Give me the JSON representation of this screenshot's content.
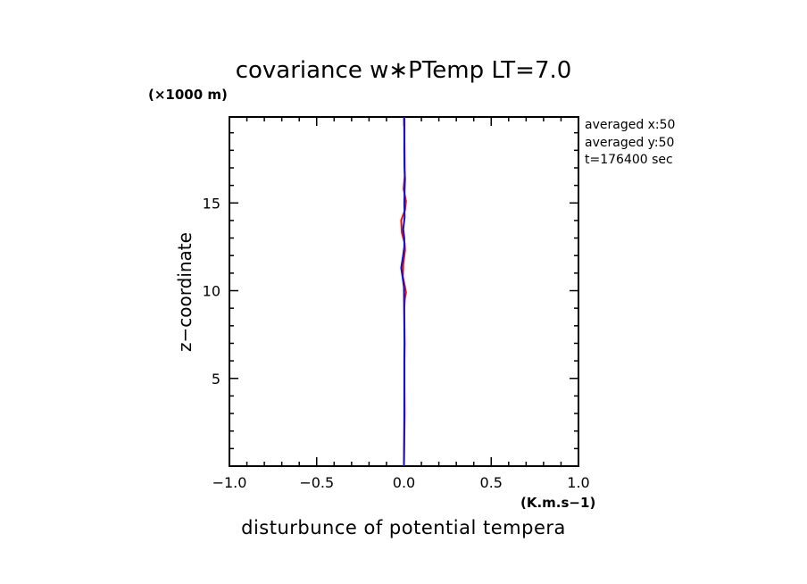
{
  "chart_data": {
    "type": "line",
    "title": "covariance w∗PTemp LT=7.0",
    "xlabel": "disturbunce of potential tempera",
    "ylabel": "z−coordinate",
    "x_unit": "(K.m.s−1)",
    "y_unit": "(×1000 m)",
    "xlim": [
      -1.0,
      1.0
    ],
    "ylim": [
      0,
      19.9
    ],
    "x_ticks": [
      -1.0,
      -0.5,
      0.0,
      0.5,
      1.0
    ],
    "x_tick_labels": [
      "−1.0",
      "−0.5",
      "0.0",
      "0.5",
      "1.0"
    ],
    "y_ticks": [
      5,
      10,
      15
    ],
    "y_tick_labels": [
      "5",
      "10",
      "15"
    ],
    "annotations": [
      "averaged   x:50",
      "averaged   y:50",
      "t=176400 sec"
    ],
    "grid": false,
    "legend": "none",
    "series": [
      {
        "color": "#e01010",
        "x": [
          0.0,
          0.002,
          0.004,
          0.003,
          0.003,
          0.004,
          0.003,
          0.002,
          0.004,
          0.006,
          0.012,
          0.004,
          -0.006,
          -0.004,
          0.006,
          0.004,
          -0.012,
          -0.016,
          0.006,
          0.012,
          -0.002,
          0.004,
          0.004,
          0.003,
          0.003
        ],
        "y": [
          0,
          1.5,
          3,
          4.5,
          6,
          7,
          8,
          9,
          9.4,
          9.6,
          9.9,
          10.3,
          10.8,
          11.5,
          12.3,
          12.7,
          13.3,
          14.0,
          14.6,
          15.1,
          15.8,
          16.5,
          17.5,
          18.5,
          19.9
        ]
      },
      {
        "color": "#1010d0",
        "x": [
          0.0,
          0.001,
          0.002,
          0.002,
          0.002,
          0.003,
          0.002,
          0.001,
          0.0,
          -0.008,
          -0.016,
          -0.006,
          0.002,
          0.002,
          -0.004,
          0.004,
          0.002,
          0.004,
          0.006,
          0.003,
          0.002,
          0.002,
          0.001
        ],
        "y": [
          0,
          1.5,
          3,
          4.5,
          6,
          7,
          8,
          9,
          10.2,
          10.8,
          11.3,
          11.9,
          12.5,
          13.0,
          13.5,
          14.2,
          15.0,
          15.8,
          16.4,
          17.0,
          18.0,
          19.0,
          19.9
        ]
      }
    ]
  }
}
